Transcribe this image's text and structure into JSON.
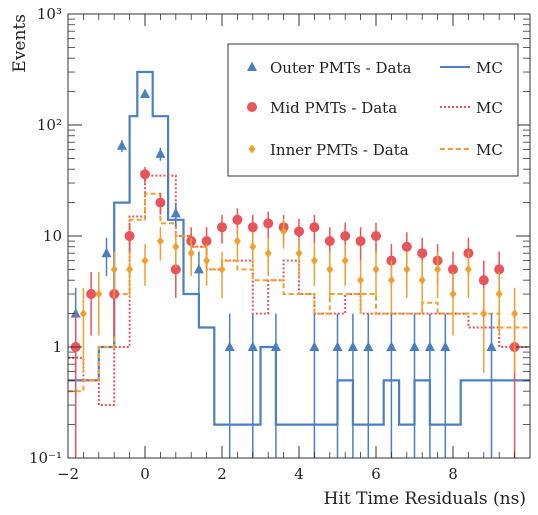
{
  "chart_data": {
    "type": "scatter",
    "title": "",
    "xlabel": "Hit Time Residuals (ns)",
    "ylabel": "Events",
    "xlim": [
      -2,
      10
    ],
    "ylim": [
      0.1,
      1000
    ],
    "yscale": "log",
    "grid": false,
    "legend_position": "top-right",
    "x_ticks": [
      -2,
      0,
      2,
      4,
      6,
      8
    ],
    "x_tick_labels": [
      "−2",
      "0",
      "2",
      "4",
      "6",
      "8"
    ],
    "y_ticks": [
      0.1,
      1,
      10,
      100,
      1000
    ],
    "y_tick_labels": [
      "10⁻¹",
      "1",
      "10",
      "10²",
      "10³"
    ],
    "series": [
      {
        "name": "Outer PMTs - Data",
        "kind": "data",
        "marker": "triangle",
        "color": "#4a7fc1",
        "x": [
          -1.8,
          -1.0,
          -0.6,
          0.0,
          0.4,
          0.8,
          1.4,
          2.2,
          2.8,
          3.4,
          4.4,
          5.0,
          5.4,
          5.8,
          6.4,
          7.0,
          7.4,
          7.8,
          9.0
        ],
        "y": [
          2.0,
          7.0,
          65.0,
          190.0,
          55.0,
          16.0,
          5.0,
          1.0,
          1.0,
          1.0,
          1.0,
          1.0,
          1.0,
          1.0,
          1.0,
          1.0,
          1.0,
          1.0,
          1.0
        ]
      },
      {
        "name": "Mid PMTs - Data",
        "kind": "data",
        "marker": "circle",
        "color": "#e8545a",
        "x": [
          -1.8,
          -1.4,
          -0.8,
          -0.4,
          0.0,
          0.4,
          0.8,
          1.2,
          1.6,
          2.0,
          2.4,
          2.8,
          3.2,
          3.6,
          4.0,
          4.4,
          4.8,
          5.2,
          5.6,
          6.0,
          6.4,
          6.8,
          7.2,
          7.6,
          8.0,
          8.4,
          8.8,
          9.2,
          9.6
        ],
        "y": [
          1.0,
          3.0,
          3.0,
          10.0,
          36.0,
          20.0,
          5.0,
          9.0,
          9.0,
          12.0,
          14.0,
          12.0,
          13.0,
          12.0,
          11.0,
          12.0,
          9.0,
          10.0,
          9.0,
          10.0,
          6.0,
          8.0,
          7.0,
          6.0,
          5.0,
          7.0,
          4.0,
          5.0,
          1.0
        ]
      },
      {
        "name": "Inner PMTs - Data",
        "kind": "data",
        "marker": "diamond",
        "color": "#f0a030",
        "x": [
          -1.6,
          -1.2,
          -0.8,
          -0.4,
          0.0,
          0.4,
          0.8,
          1.2,
          1.6,
          2.0,
          2.4,
          2.8,
          3.2,
          3.6,
          4.0,
          4.4,
          4.8,
          5.2,
          5.6,
          6.0,
          6.4,
          6.8,
          7.2,
          7.6,
          8.0,
          8.4,
          8.8,
          9.2,
          9.6
        ],
        "y": [
          2.0,
          3.0,
          5.0,
          5.0,
          6.0,
          9.0,
          8.0,
          7.0,
          6.0,
          5.0,
          9.0,
          8.0,
          7.0,
          11.0,
          7.0,
          6.0,
          5.0,
          6.0,
          4.0,
          5.0,
          4.0,
          5.0,
          4.0,
          5.0,
          3.0,
          5.0,
          2.0,
          3.0,
          2.0
        ]
      },
      {
        "name": "MC",
        "kind": "mc",
        "line_style": "solid",
        "color": "#4a7fc1",
        "bin_edges": [
          -2.0,
          -1.6,
          -1.2,
          -0.8,
          -0.4,
          -0.2,
          0.2,
          0.6,
          1.0,
          1.4,
          1.8,
          2.2,
          2.6,
          3.0,
          3.4,
          3.8,
          4.2,
          4.6,
          5.0,
          5.4,
          5.8,
          6.2,
          6.6,
          7.0,
          7.4,
          7.8,
          8.2,
          8.6,
          10.0
        ],
        "values": [
          0.5,
          0.5,
          1.0,
          20.0,
          120.0,
          300.0,
          120.0,
          14.0,
          3.0,
          1.5,
          0.2,
          0.2,
          0.2,
          1.0,
          0.2,
          0.2,
          0.2,
          0.2,
          0.5,
          0.2,
          0.2,
          0.5,
          0.2,
          0.5,
          0.2,
          0.2,
          0.5,
          0.5
        ]
      },
      {
        "name": "MC",
        "kind": "mc",
        "line_style": "dotted",
        "color": "#e8545a",
        "bin_edges": [
          -2.0,
          -1.6,
          -1.2,
          -0.8,
          -0.4,
          0.0,
          0.4,
          0.8,
          1.2,
          1.6,
          2.0,
          2.4,
          2.8,
          3.2,
          3.6,
          4.0,
          4.4,
          4.8,
          5.2,
          5.6,
          6.0,
          6.4,
          6.8,
          7.2,
          7.6,
          8.0,
          8.4,
          8.8,
          9.2,
          10.0
        ],
        "values": [
          0.8,
          0.5,
          0.3,
          1.0,
          15.0,
          35.0,
          35.0,
          10.0,
          8.0,
          5.0,
          6.0,
          6.0,
          2.0,
          4.0,
          6.0,
          3.0,
          2.0,
          2.0,
          3.0,
          2.0,
          2.0,
          2.0,
          2.0,
          2.0,
          2.0,
          2.0,
          1.5,
          1.5,
          1.0
        ]
      },
      {
        "name": "MC",
        "kind": "mc",
        "line_style": "dashed",
        "color": "#f0a030",
        "bin_edges": [
          -2.0,
          -1.6,
          -1.2,
          -0.8,
          -0.4,
          0.0,
          0.4,
          0.8,
          1.2,
          1.6,
          2.0,
          2.4,
          2.8,
          3.2,
          3.6,
          4.0,
          4.4,
          4.8,
          5.2,
          5.6,
          6.0,
          6.4,
          6.8,
          7.2,
          7.6,
          8.0,
          8.4,
          8.8,
          9.2,
          10.0
        ],
        "values": [
          0.4,
          0.5,
          1.0,
          3.0,
          14.0,
          24.0,
          13.0,
          10.0,
          8.0,
          5.0,
          6.0,
          5.0,
          4.0,
          4.0,
          3.0,
          3.0,
          2.0,
          3.0,
          3.0,
          3.0,
          2.0,
          2.0,
          2.0,
          2.5,
          2.0,
          2.0,
          2.0,
          2.0,
          1.5
        ]
      }
    ]
  }
}
